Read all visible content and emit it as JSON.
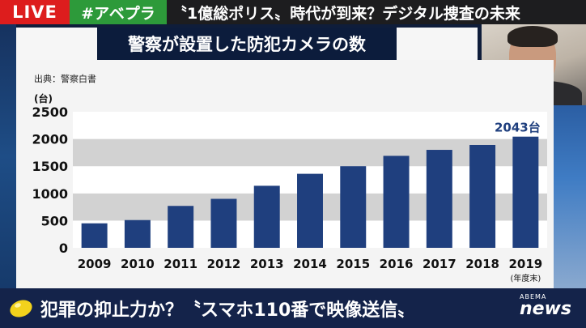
{
  "ticker": {
    "live_label": "LIVE",
    "hashtag": "#アベプラ",
    "headline": "〝1億総ポリス〟時代が到来？デジタル捜査の未来"
  },
  "title": "警察が設置した防犯カメラの数",
  "source": "出典：警察白書",
  "caption": "犯罪の抑止力か？〝スマホ110番で映像送信〟",
  "logo": {
    "small": "ABEMA",
    "big": "news"
  },
  "colors": {
    "bar": "#1f3f7e",
    "live": "#dd1d1d",
    "hashtag": "#2d9a3a",
    "caption_bg": "#14234a"
  },
  "chart_data": {
    "type": "bar",
    "categories": [
      "2009",
      "2010",
      "2011",
      "2012",
      "2013",
      "2014",
      "2015",
      "2016",
      "2017",
      "2018",
      "2019"
    ],
    "values": [
      450,
      510,
      770,
      900,
      1140,
      1360,
      1500,
      1690,
      1800,
      1890,
      2043
    ],
    "ylabel": "(台)",
    "xlabel": "(年度末)",
    "ylim": [
      0,
      2500
    ],
    "yticks": [
      0,
      500,
      1000,
      1500,
      2000,
      2500
    ],
    "data_labels": [
      {
        "category": "2019",
        "text": "2043台"
      }
    ],
    "grid": "alternating horizontal bands",
    "legend": "none"
  }
}
